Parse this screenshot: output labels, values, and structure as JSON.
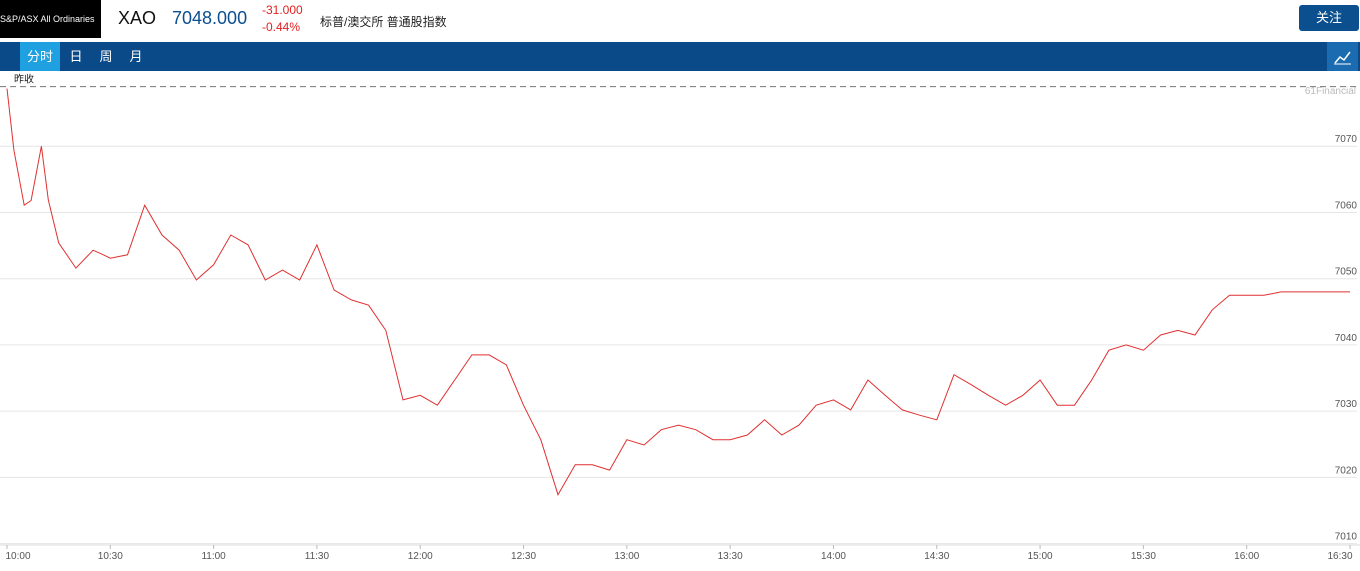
{
  "header": {
    "logo": "S&P/ASX All Ordinaries",
    "symbol": "XAO",
    "price": "7048.000",
    "change": "-31.000",
    "change_pct": "-0.44%",
    "name": "标普/澳交所 普通股指数",
    "follow_button": "关注"
  },
  "nav": {
    "tabs": [
      "分时",
      "日",
      "周",
      "月"
    ]
  },
  "watermark": "61Financial",
  "chart_data": {
    "type": "line",
    "reference_line": {
      "label": "昨收",
      "value": 7079
    },
    "color": "#e03030",
    "x": [
      "10:00",
      "10:02",
      "10:05",
      "10:07",
      "10:10",
      "10:12",
      "10:15",
      "10:20",
      "10:25",
      "10:28",
      "10:30",
      "10:35",
      "10:40",
      "10:45",
      "10:50",
      "10:55",
      "11:00",
      "11:05",
      "11:10",
      "11:15",
      "11:20",
      "11:25",
      "11:30",
      "11:35",
      "11:40",
      "11:45",
      "11:50",
      "11:55",
      "12:00",
      "12:05",
      "12:10",
      "12:15",
      "12:20",
      "12:25",
      "12:30",
      "12:35",
      "12:40",
      "12:45",
      "12:50",
      "12:55",
      "13:00",
      "13:05",
      "13:10",
      "13:15",
      "13:20",
      "13:25",
      "13:30",
      "13:35",
      "13:40",
      "13:45",
      "13:50",
      "13:55",
      "14:00",
      "14:05",
      "14:10",
      "14:15",
      "14:20",
      "14:25",
      "14:30",
      "14:35",
      "14:40",
      "14:45",
      "14:50",
      "14:55",
      "15:00",
      "15:05",
      "15:10",
      "15:15",
      "15:20",
      "15:25",
      "15:30",
      "15:35",
      "15:40",
      "15:45",
      "15:50",
      "15:55",
      "16:00",
      "16:05",
      "16:10",
      "16:30"
    ],
    "values": [
      7078.7,
      7069.4,
      7061.1,
      7061.8,
      7070.0,
      7061.9,
      7055.4,
      7051.6,
      7054.3,
      7053.6,
      7053.1,
      7053.6,
      7061.1,
      7056.6,
      7054.3,
      7049.8,
      7052.1,
      7056.6,
      7055.1,
      7049.8,
      7051.3,
      7049.8,
      7055.1,
      7048.3,
      7046.8,
      7046.0,
      7042.2,
      7031.7,
      7032.4,
      7030.9,
      7034.7,
      7038.5,
      7038.5,
      7037.0,
      7030.9,
      7025.7,
      7017.4,
      7021.9,
      7021.9,
      7021.1,
      7025.7,
      7024.9,
      7027.2,
      7027.9,
      7027.2,
      7025.7,
      7025.7,
      7026.4,
      7028.7,
      7026.4,
      7027.9,
      7030.9,
      7031.7,
      7030.2,
      7034.7,
      7032.4,
      7030.2,
      7029.4,
      7028.7,
      7035.5,
      7034.0,
      7032.4,
      7030.9,
      7032.4,
      7034.7,
      7030.9,
      7030.9,
      7034.7,
      7039.2,
      7040.0,
      7039.2,
      7041.5,
      7042.2,
      7041.5,
      7045.3,
      7047.5,
      7047.5,
      7047.5,
      7048.0,
      7048.0
    ],
    "xlim": [
      "10:00",
      "16:30"
    ],
    "xticks": [
      "10:00",
      "10:30",
      "11:00",
      "11:30",
      "12:00",
      "12:30",
      "13:00",
      "13:30",
      "14:00",
      "14:30",
      "15:00",
      "15:30",
      "16:00",
      "16:30"
    ],
    "ylim": [
      7009.8,
      7081.2
    ],
    "yticks": [
      7010,
      7020,
      7030,
      7040,
      7050,
      7060,
      7070
    ],
    "grid": true
  }
}
